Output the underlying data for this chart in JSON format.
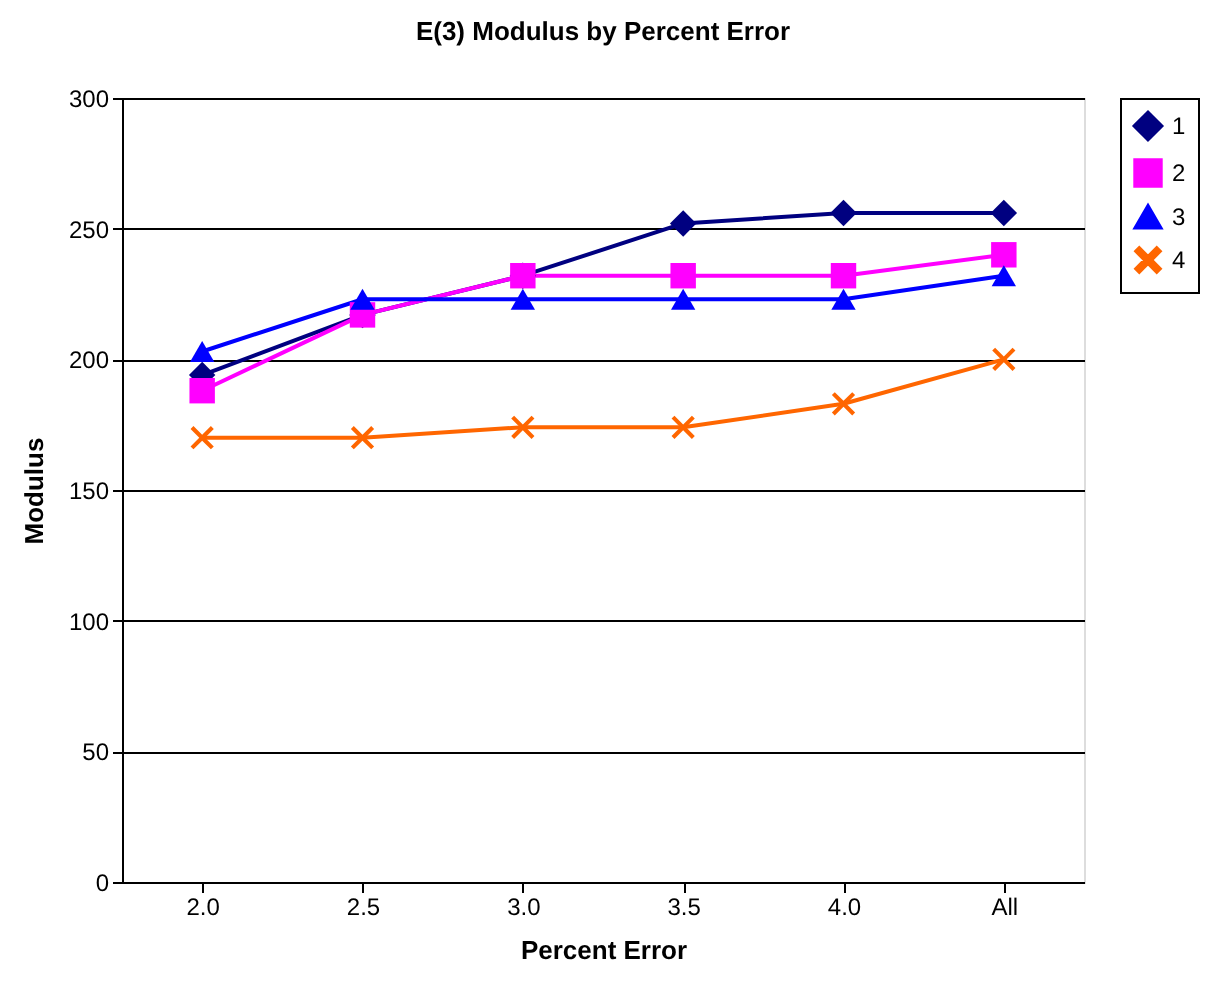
{
  "chart_data": {
    "type": "line",
    "title": "E(3) Modulus by Percent Error",
    "xlabel": "Percent Error",
    "ylabel": "Modulus",
    "categories": [
      "2.0",
      "2.5",
      "3.0",
      "3.5",
      "4.0",
      "All"
    ],
    "series": [
      {
        "name": "1",
        "color": "#000080",
        "marker": "diamond",
        "values": [
          194,
          217,
          232,
          252,
          256,
          256
        ]
      },
      {
        "name": "2",
        "color": "#ff00ff",
        "marker": "square",
        "values": [
          188,
          217,
          232,
          232,
          232,
          240
        ]
      },
      {
        "name": "3",
        "color": "#0000ff",
        "marker": "triangle",
        "values": [
          203,
          223,
          223,
          223,
          223,
          232
        ]
      },
      {
        "name": "4",
        "color": "#ff6600",
        "marker": "cross",
        "values": [
          170,
          170,
          174,
          174,
          183,
          200
        ]
      }
    ],
    "ylim": [
      0,
      300
    ],
    "yticks": [
      0,
      50,
      100,
      150,
      200,
      250,
      300
    ],
    "grid": "y",
    "legend": "right",
    "line_style": "solid"
  }
}
